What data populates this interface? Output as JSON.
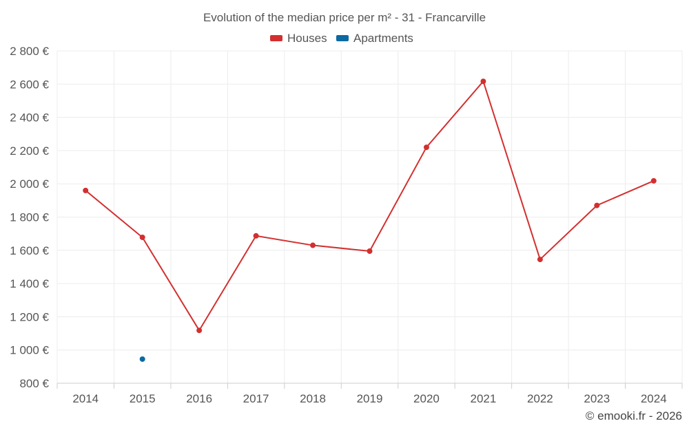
{
  "chart_data": {
    "type": "line",
    "title": "Evolution of the median price per m² - 31 - Francarville",
    "categories": [
      "2014",
      "2015",
      "2016",
      "2017",
      "2018",
      "2019",
      "2020",
      "2021",
      "2022",
      "2023",
      "2024"
    ],
    "series": [
      {
        "name": "Houses",
        "color": "#d32f2f",
        "values": [
          1960,
          1678,
          1118,
          1687,
          1630,
          1595,
          2220,
          2617,
          1545,
          1870,
          2018
        ]
      },
      {
        "name": "Apartments",
        "color": "#0b6aa2",
        "values": [
          null,
          945,
          null,
          null,
          null,
          null,
          null,
          null,
          null,
          null,
          null
        ]
      }
    ],
    "ylim": [
      800,
      2800
    ],
    "yticks": [
      800,
      1000,
      1200,
      1400,
      1600,
      1800,
      2000,
      2200,
      2400,
      2600,
      2800
    ],
    "ytick_labels": [
      "800 €",
      "1 000 €",
      "1 200 €",
      "1 400 €",
      "1 600 €",
      "1 800 €",
      "2 000 €",
      "2 200 €",
      "2 400 €",
      "2 600 €",
      "2 800 €"
    ],
    "xlabel": "",
    "ylabel": "",
    "legend_position": "top-center",
    "grid": true
  },
  "credit": "© emooki.fr - 2026"
}
